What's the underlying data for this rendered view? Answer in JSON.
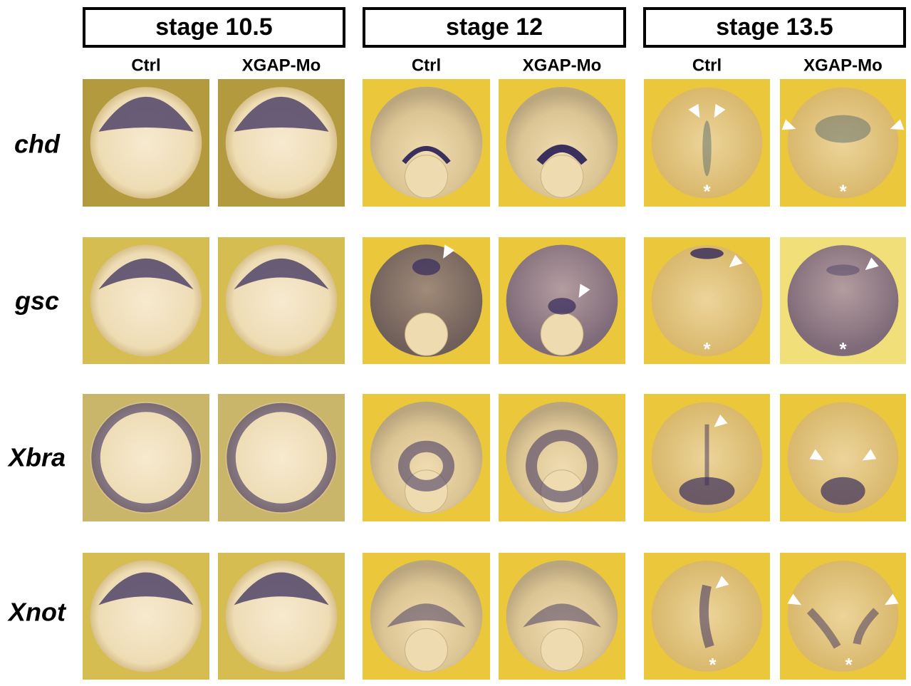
{
  "stages": [
    {
      "label": "stage 10.5",
      "columns": [
        "Ctrl",
        "XGAP-Mo"
      ]
    },
    {
      "label": "stage 12",
      "columns": [
        "Ctrl",
        "XGAP-Mo"
      ]
    },
    {
      "label": "stage 13.5",
      "columns": [
        "Ctrl",
        "XGAP-Mo"
      ]
    }
  ],
  "rows": [
    "chd",
    "gsc",
    "Xbra",
    "Xnot"
  ],
  "asterisk": "*"
}
